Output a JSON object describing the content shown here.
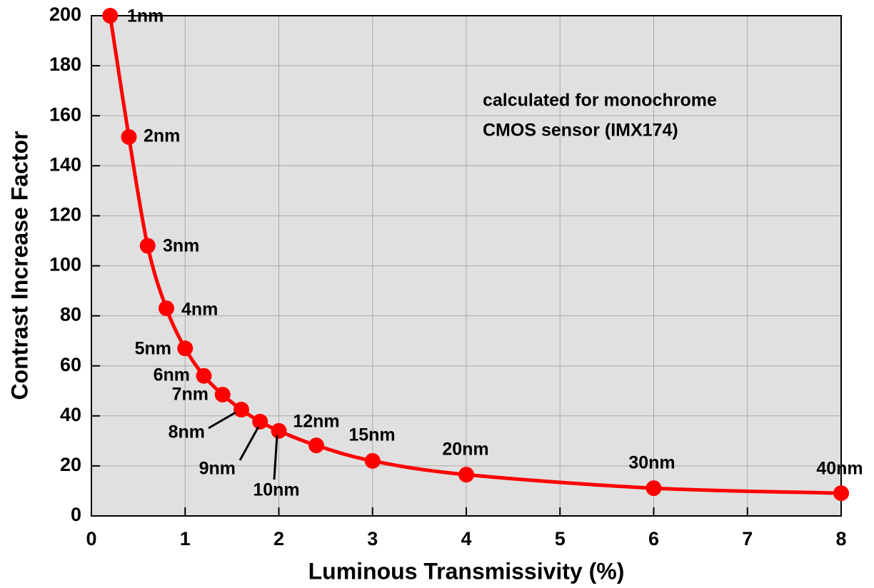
{
  "chart_data": {
    "type": "line",
    "xlabel": "Luminous Transmissivity (%)",
    "ylabel": "Contrast Increase Factor",
    "annotation": [
      "calculated for monochrome",
      "CMOS sensor (IMX174)"
    ],
    "x": [
      0.2,
      0.4,
      0.6,
      0.8,
      1.0,
      1.2,
      1.4,
      1.6,
      1.8,
      2.0,
      2.4,
      3.0,
      4.0,
      6.0,
      8.0
    ],
    "series": [
      {
        "color": "#ff0000",
        "values": [
          200,
          151.5,
          108,
          83,
          67,
          56,
          48.5,
          42.5,
          37.7,
          34,
          28.2,
          22,
          16.5,
          11.1,
          9.1
        ],
        "point_labels": [
          "1nm",
          "2nm",
          "3nm",
          "4nm",
          "5nm",
          "6nm",
          "7nm",
          "8nm",
          "9nm",
          "10nm",
          "12nm",
          "15nm",
          "20nm",
          "30nm",
          "40nm"
        ]
      }
    ],
    "xlim": [
      0,
      8
    ],
    "xticks": [
      0,
      1,
      2,
      3,
      4,
      5,
      6,
      7,
      8
    ],
    "ylim": [
      0,
      200
    ],
    "yticks": [
      0,
      20,
      40,
      60,
      80,
      100,
      120,
      140,
      160,
      180,
      200
    ],
    "grid": true,
    "background": "#e0e0e0"
  }
}
